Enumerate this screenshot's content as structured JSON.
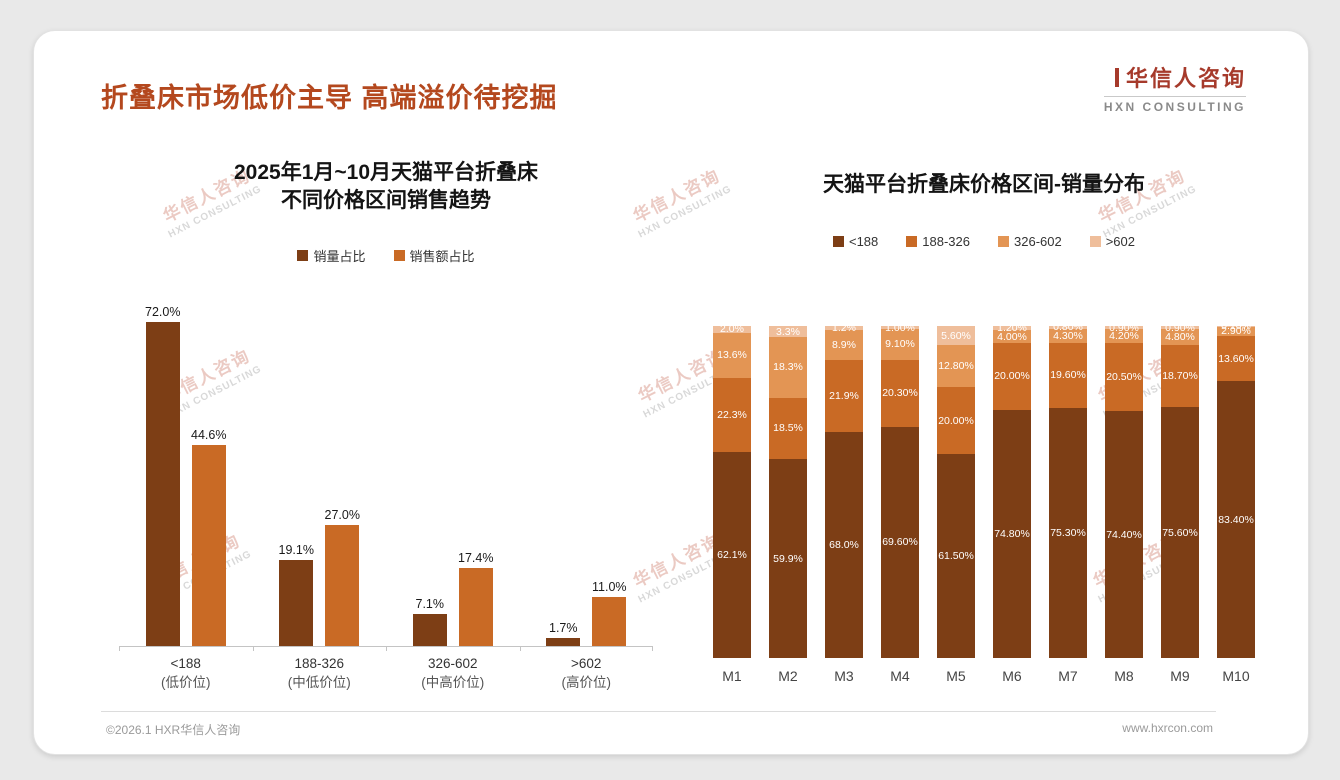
{
  "slide": {
    "title": "折叠床市场低价主导 高端溢价待挖掘",
    "logo": {
      "cn": "华信人咨询",
      "en": "HXN CONSULTING"
    },
    "watermark": {
      "cn": "华信人咨询",
      "en": "HXN CONSULTING"
    },
    "footer": {
      "copyright": "©2026.1 HXR华信人咨询",
      "website": "www.hxrcon.com"
    }
  },
  "colors": {
    "title_text": "#b4481e",
    "logo_red": "#a63a2b",
    "series_dark_brown": "#7d3e15",
    "series_orange": "#c96a25",
    "series_light_orange": "#e39554",
    "series_peach": "#efbe9b"
  },
  "chart_data": [
    {
      "type": "bar",
      "title_lines": [
        "2025年1月~10月天猫平台折叠床",
        "不同价格区间销售趋势"
      ],
      "categories": [
        "<188",
        "188-326",
        "326-602",
        ">602"
      ],
      "category_sublabels": [
        "(低价位)",
        "(中低价位)",
        "(中高价位)",
        "(高价位)"
      ],
      "series": [
        {
          "name": "销量占比",
          "color": "#7d3e15",
          "values": [
            72.0,
            19.1,
            7.1,
            1.7
          ],
          "labels": [
            "72.0%",
            "19.1%",
            "7.1%",
            "1.7%"
          ]
        },
        {
          "name": "销售额占比",
          "color": "#c96a25",
          "values": [
            44.6,
            27.0,
            17.4,
            11.0
          ],
          "labels": [
            "44.6%",
            "27.0%",
            "17.4%",
            "11.0%"
          ]
        }
      ],
      "ylim": [
        0,
        80
      ],
      "unit": "%",
      "legend_position": "top",
      "grid": false
    },
    {
      "type": "bar",
      "subtype": "stacked",
      "title": "天猫平台折叠床价格区间-销量分布",
      "categories": [
        "M1",
        "M2",
        "M3",
        "M4",
        "M5",
        "M6",
        "M7",
        "M8",
        "M9",
        "M10"
      ],
      "series": [
        {
          "name": "<188",
          "color": "#7d3e15",
          "values": [
            62.1,
            59.9,
            68.0,
            69.6,
            61.5,
            74.8,
            75.3,
            74.4,
            75.6,
            83.4
          ],
          "labels": [
            "62.1%",
            "59.9%",
            "68.0%",
            "69.60%",
            "61.50%",
            "74.80%",
            "75.30%",
            "74.40%",
            "75.60%",
            "83.40%"
          ]
        },
        {
          "name": "188-326",
          "color": "#c96a25",
          "values": [
            22.3,
            18.5,
            21.9,
            20.3,
            20.0,
            20.0,
            19.6,
            20.5,
            18.7,
            13.6
          ],
          "labels": [
            "22.3%",
            "18.5%",
            "21.9%",
            "20.30%",
            "20.00%",
            "20.00%",
            "19.60%",
            "20.50%",
            "18.70%",
            "13.60%"
          ]
        },
        {
          "name": "326-602",
          "color": "#e39554",
          "values": [
            13.6,
            18.3,
            8.9,
            9.1,
            12.8,
            4.0,
            4.3,
            4.2,
            4.8,
            2.9
          ],
          "labels": [
            "13.6%",
            "18.3%",
            "8.9%",
            "9.10%",
            "12.80%",
            "4.00%",
            "4.30%",
            "4.20%",
            "4.80%",
            "2.90%"
          ]
        },
        {
          "name": ">602",
          "color": "#efbe9b",
          "values": [
            2.0,
            3.3,
            1.2,
            1.0,
            5.6,
            1.2,
            0.8,
            0.9,
            0.9,
            0.1
          ],
          "labels": [
            "2.0%",
            "3.3%",
            "1.2%",
            "1.00%",
            "5.60%",
            "1.20%",
            "0.80%",
            "0.90%",
            "0.90%",
            "0.10%"
          ]
        }
      ],
      "ylim": [
        0,
        100
      ],
      "unit": "%",
      "legend_position": "top",
      "grid": false
    }
  ]
}
